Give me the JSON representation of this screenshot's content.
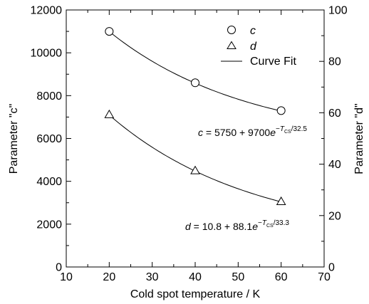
{
  "chart_data": {
    "type": "scatter",
    "xlabel": "Cold spot temperature / K",
    "ylabel_left": "Parameter \"c\"",
    "ylabel_right": "Parameter \"d\"",
    "xlim": [
      10,
      70
    ],
    "ylim_left": [
      0,
      12000
    ],
    "ylim_right": [
      0,
      100
    ],
    "x_ticks": [
      10,
      20,
      30,
      40,
      50,
      60,
      70
    ],
    "y_left_ticks": [
      0,
      2000,
      4000,
      6000,
      8000,
      10000,
      12000
    ],
    "y_right_ticks": [
      0,
      20,
      40,
      60,
      80,
      100
    ],
    "grid": false,
    "legend_position": "top-right",
    "legend": [
      {
        "label": "c",
        "marker": "circle"
      },
      {
        "label": "d",
        "marker": "triangle"
      },
      {
        "label": "Curve Fit",
        "marker": "line"
      }
    ],
    "series": [
      {
        "name": "c",
        "axis": "left",
        "marker": "circle",
        "x": [
          20,
          40,
          60
        ],
        "y": [
          11000,
          8600,
          7300
        ]
      },
      {
        "name": "d",
        "axis": "right",
        "marker": "triangle",
        "x": [
          20,
          40,
          60
        ],
        "y": [
          59.3,
          37.5,
          25.5
        ]
      }
    ],
    "fits": [
      {
        "name": "c",
        "axis": "left",
        "a": 5750,
        "b": 9700,
        "tau": 32.5,
        "x_range": [
          20,
          60
        ]
      },
      {
        "name": "d",
        "axis": "right",
        "a": 10.8,
        "b": 88.1,
        "tau": 33.3,
        "x_range": [
          20,
          60
        ]
      }
    ],
    "annotations": {
      "c": {
        "lhs": "c",
        "mid": " = 5750 + 9700",
        "base": "e",
        "exp_prefix": "−",
        "exp_var": "T",
        "exp_sub": "CS",
        "exp_suffix": "/32.5"
      },
      "d": {
        "lhs": "d",
        "mid": " = 10.8 + 88.1",
        "base": "e",
        "exp_prefix": "−",
        "exp_var": "T",
        "exp_sub": "CS",
        "exp_suffix": "/33.3"
      }
    }
  }
}
